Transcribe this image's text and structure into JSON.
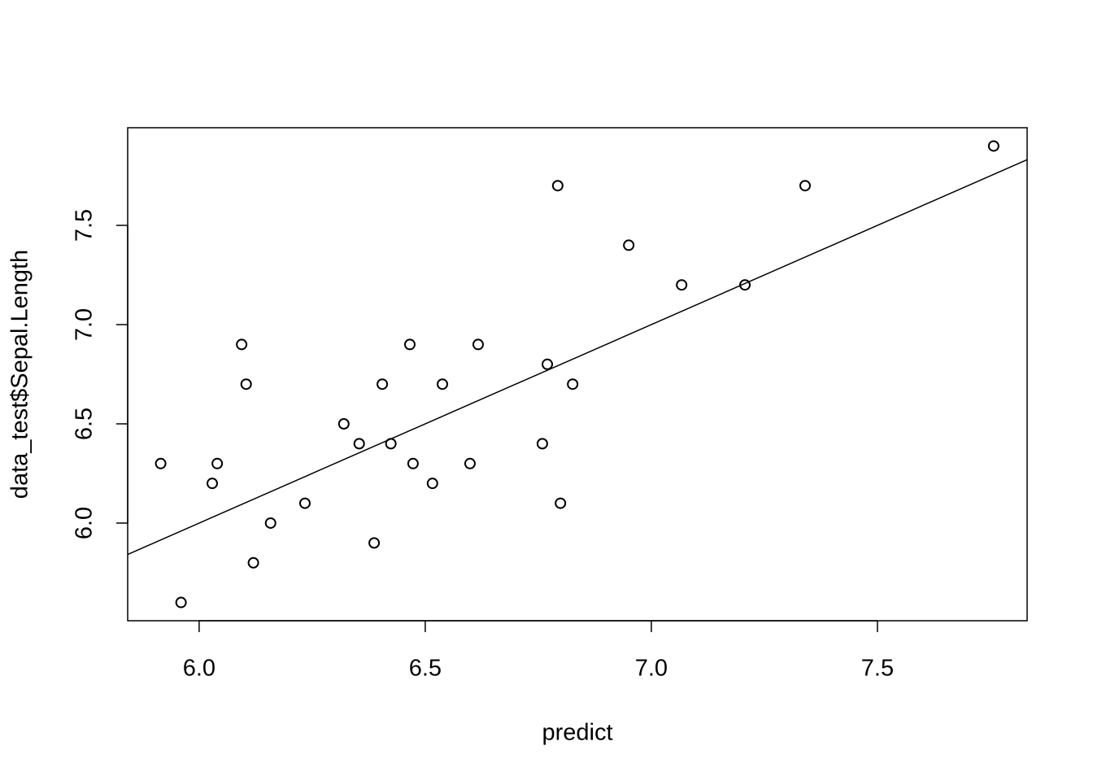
{
  "chart_data": {
    "type": "scatter",
    "x_label": "predict",
    "y_label": "data_test$Sepal.Length",
    "x": [
      5.915,
      5.96,
      6.029,
      6.04,
      6.094,
      6.104,
      6.12,
      6.158,
      6.234,
      6.32,
      6.354,
      6.387,
      6.405,
      6.424,
      6.466,
      6.473,
      6.516,
      6.538,
      6.599,
      6.617,
      6.759,
      6.77,
      6.793,
      6.799,
      6.826,
      6.95,
      7.067,
      7.207,
      7.34,
      7.757
    ],
    "values": [
      6.3,
      5.6,
      6.2,
      6.3,
      6.9,
      6.7,
      5.8,
      6.0,
      6.1,
      6.5,
      6.4,
      5.9,
      6.7,
      6.4,
      6.9,
      6.3,
      6.2,
      6.7,
      6.3,
      6.9,
      6.4,
      6.8,
      7.7,
      6.1,
      6.7,
      7.4,
      7.2,
      7.2,
      7.7,
      7.9
    ],
    "color": "#000000",
    "abline": {
      "intercept": 0,
      "slope": 1
    },
    "xlim": [
      5.842,
      7.831
    ],
    "ylim": [
      5.508,
      7.992
    ],
    "xticks": [
      {
        "value": 6,
        "label": "6.0"
      },
      {
        "value": 6.5,
        "label": "6.5"
      },
      {
        "value": 7,
        "label": "7.0"
      },
      {
        "value": 7.5,
        "label": "7.5"
      }
    ],
    "yticks": [
      {
        "value": 6,
        "label": "6.0"
      },
      {
        "value": 6.5,
        "label": "6.5"
      },
      {
        "value": 7,
        "label": "7.0"
      },
      {
        "value": 7.5,
        "label": "7.5"
      }
    ]
  }
}
